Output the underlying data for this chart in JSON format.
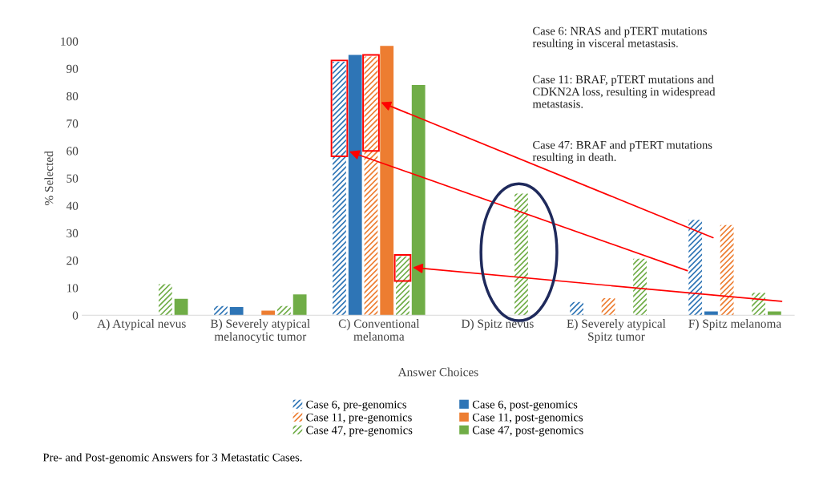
{
  "chart_data": {
    "type": "bar",
    "xlabel": "Answer Choices",
    "ylabel": "% Selected",
    "categories": [
      "A) Atypical nevus",
      "B) Severely atypical\nmelanocytic tumor",
      "C) Conventional\nmelanoma",
      "D) Spitz nevus",
      "E) Severely atypical\nSpitz tumor",
      "F) Spitz melanoma"
    ],
    "series": [
      {
        "name": "Case 6, pre-genomics",
        "color": "#2e75b6",
        "values": [
          0,
          3.4,
          92.5,
          0,
          4.8,
          34.8
        ]
      },
      {
        "name": "Case 6, post-genomics",
        "color": "#2e75b6",
        "values": [
          0,
          3,
          95,
          0,
          0,
          1.4
        ]
      },
      {
        "name": "Case 11, pre-genomics",
        "color": "#ed7d31",
        "values": [
          0,
          0,
          94.4,
          0,
          6.2,
          32.9
        ]
      },
      {
        "name": "Case 11, post-genomics",
        "color": "#ed7d31",
        "values": [
          0,
          1.7,
          98.3,
          0,
          0,
          0
        ]
      },
      {
        "name": "Case 47, pre-genomics",
        "color": "#70ad47",
        "values": [
          11.3,
          3.4,
          21.5,
          44.4,
          20.6,
          8.2
        ]
      },
      {
        "name": "Case 47, post-genomics",
        "color": "#70ad47",
        "values": [
          6,
          7.6,
          84,
          0,
          0,
          1.4
        ]
      }
    ],
    "ylim": [
      0,
      100
    ],
    "yticks": [
      0,
      10,
      20,
      30,
      40,
      50,
      60,
      70,
      80,
      90,
      100
    ],
    "grid": false,
    "legend": "bottom",
    "annotations": [
      "Case 6: NRAS and pTERT mutations\nresulting in visceral metastasis.",
      "Case 11: BRAF, pTERT mutations and\nCDKN2A loss, resulting in widespread\nmetastasis.",
      "Case 47: BRAF and pTERT mutations\nresulting in death.",
      "Pre- and Post-genomic Answers for 3 Metastatic Cases."
    ]
  }
}
